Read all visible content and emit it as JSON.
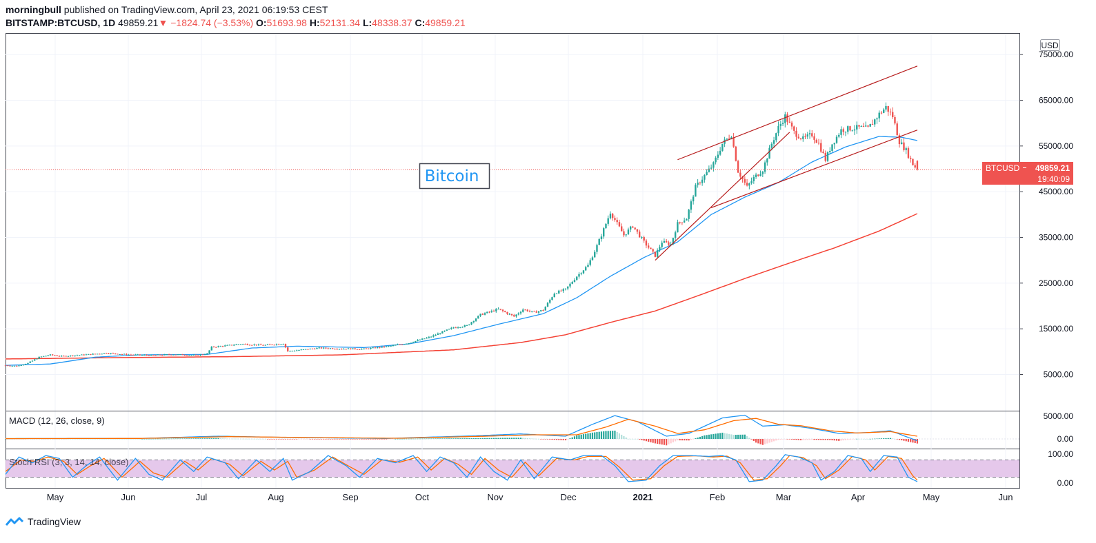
{
  "header": {
    "author": "morningbull",
    "published_text": " published on TradingView.com, April 23, 2021 06:19:53 CEST",
    "symbol_interval": "BITSTAMP:BTCUSD, 1D",
    "last": "49859.21",
    "arrow": "▼",
    "change": "−1824.74 (−3.53%)",
    "o_label": "O:",
    "o_value": "51693.98",
    "h_label": "H:",
    "h_value": "52131.34",
    "l_label": "L:",
    "l_value": "48338.37",
    "c_label": "C:",
    "c_value": "49859.21"
  },
  "footer": {
    "brand": "TradingView"
  },
  "colors": {
    "up": "#26a69a",
    "down": "#ef5350",
    "ma_short": "#2196f3",
    "ma_long": "#f44336",
    "trend": "#b71c1c",
    "macd": "#2196f3",
    "signal": "#ff6d00",
    "stoch_k": "#2196f3",
    "stoch_d": "#ff6d00",
    "stoch_band": "#e1bee7"
  },
  "chart_data": [
    {
      "type": "candlestick",
      "annotation": "Bitcoin",
      "currency": "USD",
      "price_label": "BTCUSD",
      "price_value": "49859.21",
      "countdown": "19:40:09",
      "ylim": [
        -1500,
        78500
      ],
      "y_ticks": [
        "75000.00",
        "65000.00",
        "55000.00",
        "45000.00",
        "35000.00",
        "25000.00",
        "15000.00",
        "5000.00"
      ],
      "x_ticks": [
        "May",
        "Jun",
        "Jul",
        "Aug",
        "Sep",
        "Oct",
        "Nov",
        "Dec",
        "2021",
        "Feb",
        "Mar",
        "Apr",
        "May",
        "Jun"
      ],
      "close_anchors": [
        [
          0,
          7000
        ],
        [
          5,
          6850
        ],
        [
          10,
          7500
        ],
        [
          15,
          8800
        ],
        [
          20,
          9300
        ],
        [
          25,
          9000
        ],
        [
          30,
          9150
        ],
        [
          40,
          9500
        ],
        [
          45,
          9700
        ],
        [
          55,
          9350
        ],
        [
          65,
          9200
        ],
        [
          75,
          9400
        ],
        [
          85,
          9200
        ],
        [
          90,
          9550
        ],
        [
          92,
          11000
        ],
        [
          100,
          11400
        ],
        [
          105,
          11700
        ],
        [
          115,
          11400
        ],
        [
          124,
          11800
        ],
        [
          126,
          10100
        ],
        [
          132,
          10400
        ],
        [
          140,
          10800
        ],
        [
          150,
          10650
        ],
        [
          160,
          10600
        ],
        [
          170,
          11100
        ],
        [
          180,
          11900
        ],
        [
          190,
          13300
        ],
        [
          200,
          15300
        ],
        [
          206,
          15700
        ],
        [
          212,
          18100
        ],
        [
          220,
          19300
        ],
        [
          227,
          17700
        ],
        [
          231,
          19250
        ],
        [
          236,
          18600
        ],
        [
          240,
          19100
        ],
        [
          245,
          22800
        ],
        [
          250,
          23600
        ],
        [
          255,
          26500
        ],
        [
          260,
          28900
        ],
        [
          263,
          32000
        ],
        [
          266,
          35500
        ],
        [
          270,
          40500
        ],
        [
          273,
          38000
        ],
        [
          276,
          35500
        ],
        [
          280,
          37500
        ],
        [
          285,
          34000
        ],
        [
          290,
          31000
        ],
        [
          293,
          34000
        ],
        [
          297,
          33500
        ],
        [
          300,
          38000
        ],
        [
          304,
          39200
        ],
        [
          308,
          46000
        ],
        [
          312,
          48500
        ],
        [
          316,
          51000
        ],
        [
          320,
          55500
        ],
        [
          324,
          57500
        ],
        [
          327,
          49500
        ],
        [
          331,
          46000
        ],
        [
          334,
          48000
        ],
        [
          338,
          49800
        ],
        [
          342,
          55500
        ],
        [
          345,
          59000
        ],
        [
          348,
          61500
        ],
        [
          352,
          58000
        ],
        [
          356,
          56500
        ],
        [
          360,
          57500
        ],
        [
          363,
          55500
        ],
        [
          366,
          52000
        ],
        [
          369,
          55500
        ],
        [
          373,
          58500
        ],
        [
          377,
          58800
        ],
        [
          381,
          59000
        ],
        [
          385,
          58800
        ],
        [
          390,
          62000
        ],
        [
          393,
          63500
        ],
        [
          396,
          61500
        ],
        [
          399,
          56000
        ],
        [
          402,
          54000
        ],
        [
          405,
          51000
        ],
        [
          407,
          49860
        ]
      ],
      "ma_short_anchors": [
        [
          0,
          7000
        ],
        [
          20,
          7300
        ],
        [
          40,
          8800
        ],
        [
          60,
          9300
        ],
        [
          90,
          9400
        ],
        [
          110,
          10800
        ],
        [
          130,
          11200
        ],
        [
          160,
          10900
        ],
        [
          180,
          11700
        ],
        [
          200,
          13500
        ],
        [
          220,
          16000
        ],
        [
          240,
          18300
        ],
        [
          255,
          21800
        ],
        [
          270,
          26500
        ],
        [
          285,
          30600
        ],
        [
          300,
          34000
        ],
        [
          315,
          40000
        ],
        [
          330,
          43800
        ],
        [
          345,
          47000
        ],
        [
          360,
          51500
        ],
        [
          375,
          54800
        ],
        [
          390,
          57100
        ],
        [
          400,
          56900
        ],
        [
          407,
          56200
        ]
      ],
      "ma_long_anchors": [
        [
          0,
          8400
        ],
        [
          50,
          8700
        ],
        [
          100,
          8900
        ],
        [
          150,
          9300
        ],
        [
          200,
          10400
        ],
        [
          230,
          12000
        ],
        [
          250,
          13700
        ],
        [
          270,
          16400
        ],
        [
          290,
          18900
        ],
        [
          310,
          22400
        ],
        [
          330,
          26000
        ],
        [
          350,
          29400
        ],
        [
          370,
          32700
        ],
        [
          390,
          36400
        ],
        [
          407,
          40200
        ]
      ],
      "channel_lines": [
        {
          "from": [
            300,
            52000
          ],
          "to": [
            407,
            72500
          ]
        },
        {
          "from": [
            315,
            41500
          ],
          "to": [
            407,
            58500
          ]
        },
        {
          "from": [
            290,
            30000
          ],
          "to": [
            350,
            58000
          ]
        }
      ]
    },
    {
      "type": "line",
      "title": "MACD (12, 26, close, 9)",
      "y_ticks": [
        "5000.00",
        "0.00"
      ],
      "ylim": [
        -2500,
        6500
      ],
      "macd_anchors": [
        [
          0,
          80
        ],
        [
          60,
          120
        ],
        [
          95,
          600
        ],
        [
          130,
          300
        ],
        [
          170,
          100
        ],
        [
          210,
          700
        ],
        [
          230,
          1100
        ],
        [
          250,
          600
        ],
        [
          262,
          3200
        ],
        [
          272,
          5100
        ],
        [
          282,
          3800
        ],
        [
          295,
          600
        ],
        [
          305,
          1200
        ],
        [
          320,
          4600
        ],
        [
          330,
          5200
        ],
        [
          338,
          2800
        ],
        [
          348,
          3100
        ],
        [
          360,
          2300
        ],
        [
          372,
          1200
        ],
        [
          385,
          1400
        ],
        [
          395,
          1800
        ],
        [
          407,
          -400
        ]
      ],
      "signal_anchors": [
        [
          0,
          60
        ],
        [
          60,
          110
        ],
        [
          100,
          500
        ],
        [
          135,
          320
        ],
        [
          175,
          150
        ],
        [
          215,
          600
        ],
        [
          235,
          900
        ],
        [
          255,
          900
        ],
        [
          268,
          2600
        ],
        [
          278,
          4300
        ],
        [
          290,
          2800
        ],
        [
          300,
          1200
        ],
        [
          312,
          2000
        ],
        [
          325,
          4000
        ],
        [
          335,
          4500
        ],
        [
          345,
          3200
        ],
        [
          355,
          2900
        ],
        [
          368,
          1800
        ],
        [
          380,
          1300
        ],
        [
          395,
          1600
        ],
        [
          407,
          600
        ]
      ]
    },
    {
      "type": "line",
      "title": "Stoch RSI (3, 3, 14, 14, close)",
      "y_ticks": [
        "100.00",
        "0.00"
      ],
      "ylim": [
        0,
        100
      ],
      "band": [
        20,
        80
      ],
      "k_anchors": [
        [
          0,
          30
        ],
        [
          6,
          90
        ],
        [
          12,
          70
        ],
        [
          18,
          95
        ],
        [
          24,
          85
        ],
        [
          30,
          20
        ],
        [
          36,
          60
        ],
        [
          42,
          90
        ],
        [
          50,
          10
        ],
        [
          58,
          85
        ],
        [
          64,
          30
        ],
        [
          70,
          10
        ],
        [
          78,
          80
        ],
        [
          84,
          40
        ],
        [
          90,
          90
        ],
        [
          98,
          70
        ],
        [
          104,
          15
        ],
        [
          112,
          80
        ],
        [
          118,
          40
        ],
        [
          124,
          85
        ],
        [
          128,
          10
        ],
        [
          136,
          40
        ],
        [
          144,
          95
        ],
        [
          152,
          60
        ],
        [
          158,
          20
        ],
        [
          166,
          85
        ],
        [
          174,
          70
        ],
        [
          182,
          95
        ],
        [
          188,
          40
        ],
        [
          194,
          90
        ],
        [
          200,
          70
        ],
        [
          206,
          20
        ],
        [
          212,
          90
        ],
        [
          218,
          40
        ],
        [
          224,
          10
        ],
        [
          230,
          80
        ],
        [
          236,
          15
        ],
        [
          244,
          90
        ],
        [
          252,
          80
        ],
        [
          258,
          95
        ],
        [
          266,
          95
        ],
        [
          272,
          60
        ],
        [
          278,
          5
        ],
        [
          286,
          10
        ],
        [
          292,
          60
        ],
        [
          298,
          95
        ],
        [
          306,
          95
        ],
        [
          314,
          92
        ],
        [
          320,
          95
        ],
        [
          326,
          80
        ],
        [
          332,
          5
        ],
        [
          338,
          10
        ],
        [
          344,
          60
        ],
        [
          348,
          98
        ],
        [
          354,
          90
        ],
        [
          360,
          70
        ],
        [
          364,
          10
        ],
        [
          370,
          40
        ],
        [
          376,
          95
        ],
        [
          382,
          85
        ],
        [
          386,
          40
        ],
        [
          392,
          95
        ],
        [
          398,
          90
        ],
        [
          403,
          20
        ],
        [
          407,
          5
        ]
      ],
      "d_anchors": [
        [
          0,
          40
        ],
        [
          7,
          80
        ],
        [
          13,
          75
        ],
        [
          19,
          90
        ],
        [
          26,
          75
        ],
        [
          32,
          30
        ],
        [
          38,
          60
        ],
        [
          44,
          85
        ],
        [
          52,
          20
        ],
        [
          60,
          75
        ],
        [
          66,
          35
        ],
        [
          72,
          20
        ],
        [
          80,
          75
        ],
        [
          86,
          45
        ],
        [
          92,
          85
        ],
        [
          100,
          65
        ],
        [
          106,
          25
        ],
        [
          114,
          75
        ],
        [
          120,
          45
        ],
        [
          126,
          75
        ],
        [
          130,
          20
        ],
        [
          138,
          45
        ],
        [
          146,
          90
        ],
        [
          154,
          55
        ],
        [
          160,
          30
        ],
        [
          168,
          80
        ],
        [
          176,
          72
        ],
        [
          184,
          90
        ],
        [
          190,
          45
        ],
        [
          196,
          85
        ],
        [
          202,
          65
        ],
        [
          208,
          30
        ],
        [
          214,
          85
        ],
        [
          220,
          45
        ],
        [
          226,
          20
        ],
        [
          232,
          72
        ],
        [
          238,
          25
        ],
        [
          246,
          85
        ],
        [
          254,
          80
        ],
        [
          260,
          92
        ],
        [
          268,
          92
        ],
        [
          274,
          55
        ],
        [
          280,
          10
        ],
        [
          288,
          15
        ],
        [
          294,
          60
        ],
        [
          300,
          92
        ],
        [
          308,
          94
        ],
        [
          316,
          90
        ],
        [
          322,
          93
        ],
        [
          328,
          70
        ],
        [
          334,
          10
        ],
        [
          340,
          15
        ],
        [
          346,
          60
        ],
        [
          350,
          95
        ],
        [
          356,
          88
        ],
        [
          362,
          60
        ],
        [
          366,
          15
        ],
        [
          372,
          45
        ],
        [
          378,
          92
        ],
        [
          384,
          80
        ],
        [
          388,
          45
        ],
        [
          394,
          92
        ],
        [
          400,
          85
        ],
        [
          405,
          25
        ],
        [
          407,
          10
        ]
      ]
    }
  ]
}
